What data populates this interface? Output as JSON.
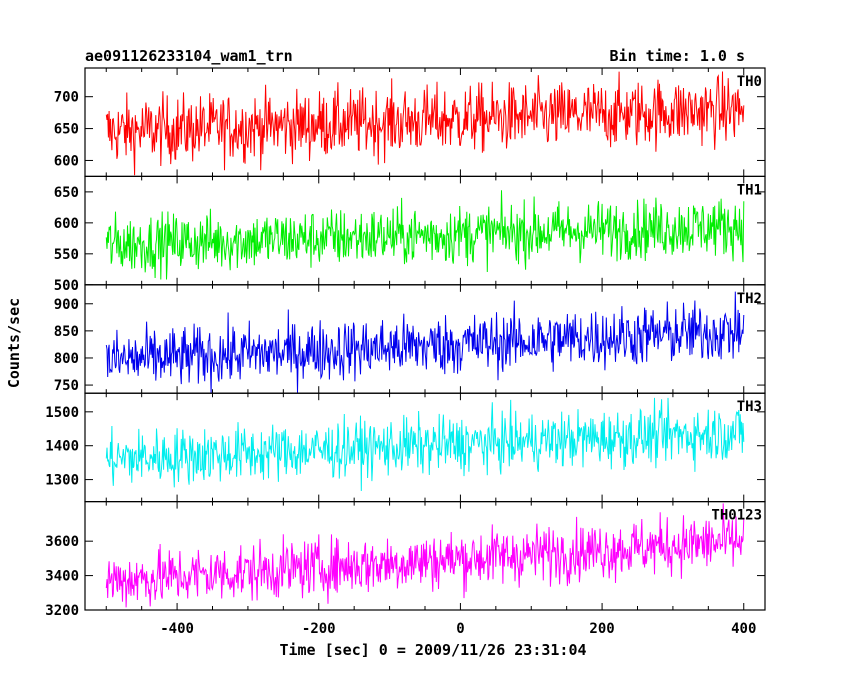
{
  "header": {
    "file_label": "ae091126233104_wam1_trn",
    "bin_label": "Bin time: 1.0 s"
  },
  "chart_data": {
    "type": "line",
    "xlabel": "Time [sec] 0 = 2009/11/26 23:31:04",
    "ylabel": "Counts/sec",
    "xlim": [
      -530,
      430
    ],
    "x_ticks": [
      -400,
      -200,
      0,
      200,
      400
    ],
    "x_range_data": [
      -500,
      400
    ],
    "bin_seconds": 1.0,
    "panels": [
      {
        "name": "TH0",
        "color": "#ff0000",
        "ylim": [
          575,
          745
        ],
        "y_ticks": [
          600,
          650,
          700
        ],
        "trend_start": 645,
        "trend_end": 680,
        "noise_amplitude": 38
      },
      {
        "name": "TH1",
        "color": "#00ee00",
        "ylim": [
          500,
          675
        ],
        "y_ticks": [
          500,
          550,
          600,
          650
        ],
        "trend_start": 565,
        "trend_end": 595,
        "noise_amplitude": 34
      },
      {
        "name": "TH2",
        "color": "#0000ee",
        "ylim": [
          735,
          935
        ],
        "y_ticks": [
          750,
          800,
          850,
          900
        ],
        "trend_start": 795,
        "trend_end": 850,
        "noise_amplitude": 40
      },
      {
        "name": "TH3",
        "color": "#00eeee",
        "ylim": [
          1235,
          1555
        ],
        "y_ticks": [
          1300,
          1400,
          1500
        ],
        "trend_start": 1360,
        "trend_end": 1440,
        "noise_amplitude": 60
      },
      {
        "name": "TH0123",
        "color": "#ff00ff",
        "ylim": [
          3200,
          3830
        ],
        "y_ticks": [
          3200,
          3400,
          3600
        ],
        "trend_start": 3370,
        "trend_end": 3600,
        "noise_amplitude": 120
      }
    ]
  }
}
